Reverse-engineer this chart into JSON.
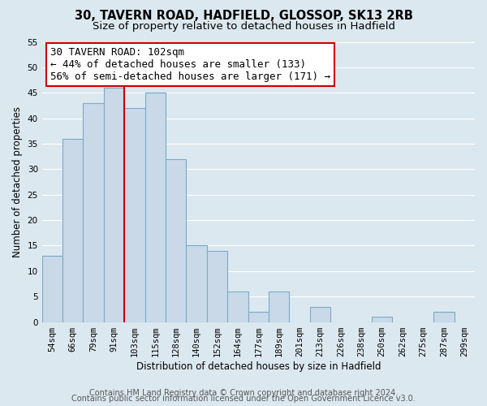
{
  "title": "30, TAVERN ROAD, HADFIELD, GLOSSOP, SK13 2RB",
  "subtitle": "Size of property relative to detached houses in Hadfield",
  "xlabel": "Distribution of detached houses by size in Hadfield",
  "ylabel": "Number of detached properties",
  "bar_labels": [
    "54sqm",
    "66sqm",
    "79sqm",
    "91sqm",
    "103sqm",
    "115sqm",
    "128sqm",
    "140sqm",
    "152sqm",
    "164sqm",
    "177sqm",
    "189sqm",
    "201sqm",
    "213sqm",
    "226sqm",
    "238sqm",
    "250sqm",
    "262sqm",
    "275sqm",
    "287sqm",
    "299sqm"
  ],
  "bar_values": [
    13,
    36,
    43,
    46,
    42,
    45,
    32,
    15,
    14,
    6,
    2,
    6,
    0,
    3,
    0,
    0,
    1,
    0,
    0,
    2,
    0
  ],
  "bar_color": "#c9d9e8",
  "bar_edge_color": "#7aaac8",
  "vline_color": "#cc0000",
  "vline_x": 3.5,
  "ylim": [
    0,
    55
  ],
  "yticks": [
    0,
    5,
    10,
    15,
    20,
    25,
    30,
    35,
    40,
    45,
    50,
    55
  ],
  "ann_line1": "30 TAVERN ROAD: 102sqm",
  "ann_line2": "← 44% of detached houses are smaller (133)",
  "ann_line3": "56% of semi-detached houses are larger (171) →",
  "annotation_box_facecolor": "#ffffff",
  "annotation_box_edgecolor": "#cc0000",
  "footer_line1": "Contains HM Land Registry data © Crown copyright and database right 2024.",
  "footer_line2": "Contains public sector information licensed under the Open Government Licence v3.0.",
  "background_color": "#dce8f0",
  "plot_background": "#dce8f0",
  "grid_color": "#ffffff",
  "title_fontsize": 10.5,
  "subtitle_fontsize": 9.5,
  "axis_fontsize": 8.5,
  "tick_fontsize": 7.5,
  "footer_fontsize": 7,
  "ann_fontsize": 9
}
